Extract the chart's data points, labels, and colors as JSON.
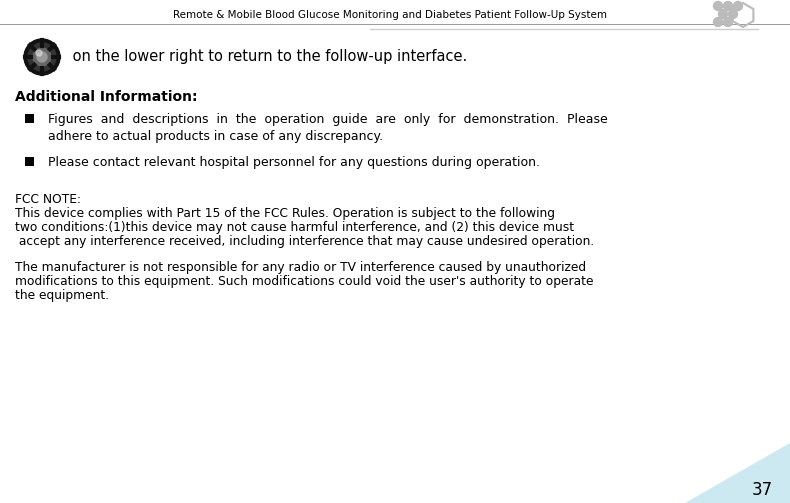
{
  "title": "Remote & Mobile Blood Glucose Monitoring and Diabetes Patient Follow-Up System",
  "page_number": "37",
  "bg_color": "#ffffff",
  "title_color": "#000000",
  "title_fontsize": 7.5,
  "header_line_color": "#aaaaaa",
  "intro_text": " on the lower right to return to the follow-up interface.",
  "intro_fontsize": 10.5,
  "section_title": "Additional Information:",
  "section_fontsize": 10.0,
  "bullet1_line1": "Figures  and  descriptions  in  the  operation  guide  are  only  for  demonstration.  Please",
  "bullet1_line2": "adhere to actual products in case of any discrepancy.",
  "bullet2": "Please contact relevant hospital personnel for any questions during operation.",
  "body_fontsize": 9.0,
  "fcc_title": "FCC NOTE:",
  "fcc_line1": "This device complies with Part 15 of the FCC Rules. Operation is subject to the following",
  "fcc_line2": "two conditions:(1)this device may not cause harmful interference, and (2) this device must",
  "fcc_line3": " accept any interference received, including interference that may cause undesired operation.",
  "fcc_extra1": "The manufacturer is not responsible for any radio or TV interference caused by unauthorized",
  "fcc_extra2": "modifications to this equipment. Such modifications could void the user's authority to operate",
  "fcc_extra3": "the equipment.",
  "fcc_fontsize": 8.8,
  "corner_color": "#cce8f0",
  "text_color": "#000000",
  "hex_color": "#bbbbbb",
  "line_color": "#999999"
}
